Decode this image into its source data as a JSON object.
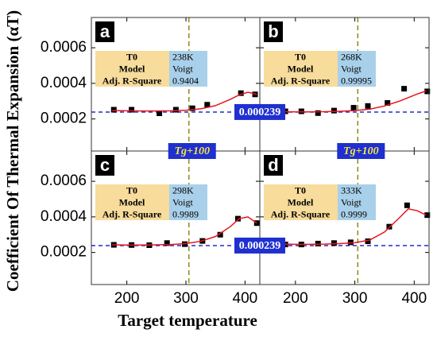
{
  "ylabel": "Coefficient Of Thermal Expansion (αT)",
  "xlabel": "Target temperature",
  "chart_data": [
    {
      "type": "scatter",
      "panel": "a",
      "xlim": [
        140,
        425
      ],
      "ylim": [
        2e-05,
        0.00077
      ],
      "xticks": [
        200,
        300,
        400
      ],
      "yticks": [
        0.0002,
        0.0004,
        0.0006
      ],
      "ref_y": 0.000239,
      "ref_x": 305,
      "ref_x_label": "Tg+100",
      "table": [
        [
          "T0",
          "238K"
        ],
        [
          "Model",
          "Voigt"
        ],
        [
          "Adj. R-Square",
          "0.9404"
        ]
      ],
      "series": [
        {
          "color": "#000000",
          "x": [
            178,
            208,
            255,
            283,
            311,
            336,
            393,
            417
          ],
          "values": [
            0.000252,
            0.000252,
            0.000232,
            0.000252,
            0.00026,
            0.00028,
            0.000345,
            0.000338
          ]
        },
        {
          "color": "#e8141c",
          "x": [
            175,
            200,
            225,
            250,
            275,
            300,
            325,
            350,
            375,
            390,
            405,
            420
          ],
          "values": [
            0.000247,
            0.000246,
            0.000245,
            0.000245,
            0.000246,
            0.000249,
            0.000257,
            0.000275,
            0.00031,
            0.000335,
            0.00035,
            0.000338
          ]
        }
      ]
    },
    {
      "type": "scatter",
      "panel": "b",
      "xlim": [
        140,
        425
      ],
      "ylim": [
        2e-05,
        0.00077
      ],
      "xticks": [
        200,
        300,
        400
      ],
      "yticks": [
        0.0002,
        0.0004,
        0.0006
      ],
      "ref_y": 0.000239,
      "ref_x": 305,
      "ref_x_label": "Tg+100",
      "table": [
        [
          "T0",
          "268K"
        ],
        [
          "Model",
          "Voigt"
        ],
        [
          "Adj. R-Square",
          "0.99995"
        ]
      ],
      "series": [
        {
          "color": "#000000",
          "x": [
            183,
            210,
            238,
            265,
            298,
            322,
            355,
            383,
            422
          ],
          "values": [
            0.000243,
            0.000243,
            0.000233,
            0.000247,
            0.000263,
            0.000273,
            0.00029,
            0.00037,
            0.000355
          ]
        },
        {
          "color": "#e8141c",
          "x": [
            175,
            200,
            225,
            250,
            275,
            300,
            325,
            350,
            375,
            390,
            405,
            420
          ],
          "values": [
            0.000241,
            0.00024,
            0.00024,
            0.000241,
            0.000243,
            0.000247,
            0.000255,
            0.000273,
            0.0003,
            0.00032,
            0.00034,
            0.000357
          ]
        }
      ]
    },
    {
      "type": "scatter",
      "panel": "c",
      "xlim": [
        140,
        425
      ],
      "ylim": [
        2e-05,
        0.00077
      ],
      "xticks": [
        200,
        300,
        400
      ],
      "yticks": [
        0.0002,
        0.0004,
        0.0006
      ],
      "ref_y": 0.000239,
      "ref_x": 305,
      "table": [
        [
          "T0",
          "298K"
        ],
        [
          "Model",
          "Voigt"
        ],
        [
          "Adj. R-Square",
          "0.9989"
        ]
      ],
      "series": [
        {
          "color": "#000000",
          "x": [
            178,
            208,
            238,
            268,
            298,
            328,
            358,
            388,
            420
          ],
          "values": [
            0.000243,
            0.000242,
            0.000241,
            0.000253,
            0.000247,
            0.000265,
            0.0003,
            0.00039,
            0.000365
          ]
        },
        {
          "color": "#e8141c",
          "x": [
            175,
            200,
            225,
            250,
            275,
            300,
            325,
            350,
            375,
            390,
            405,
            420
          ],
          "values": [
            0.000243,
            0.000242,
            0.000242,
            0.000243,
            0.000245,
            0.00025,
            0.000263,
            0.00029,
            0.000345,
            0.00039,
            0.0004,
            0.000365
          ]
        }
      ]
    },
    {
      "type": "scatter",
      "panel": "d",
      "xlim": [
        140,
        425
      ],
      "ylim": [
        2e-05,
        0.00077
      ],
      "xticks": [
        200,
        300,
        400
      ],
      "yticks": [
        0.0002,
        0.0004,
        0.0006
      ],
      "ref_y": 0.000239,
      "ref_x": 305,
      "table": [
        [
          "T0",
          "333K"
        ],
        [
          "Model",
          "Voigt"
        ],
        [
          "Adj. R-Square",
          "0.9999"
        ]
      ],
      "series": [
        {
          "color": "#000000",
          "x": [
            183,
            210,
            238,
            265,
            293,
            322,
            358,
            388,
            422
          ],
          "values": [
            0.000245,
            0.000245,
            0.00025,
            0.000253,
            0.000257,
            0.000263,
            0.000345,
            0.000465,
            0.00041
          ]
        },
        {
          "color": "#e8141c",
          "x": [
            175,
            200,
            225,
            250,
            275,
            300,
            325,
            350,
            375,
            390,
            405,
            420
          ],
          "values": [
            0.000247,
            0.000246,
            0.000246,
            0.000247,
            0.00025,
            0.000255,
            0.00027,
            0.000315,
            0.000395,
            0.000445,
            0.000435,
            0.00041
          ]
        }
      ]
    }
  ]
}
